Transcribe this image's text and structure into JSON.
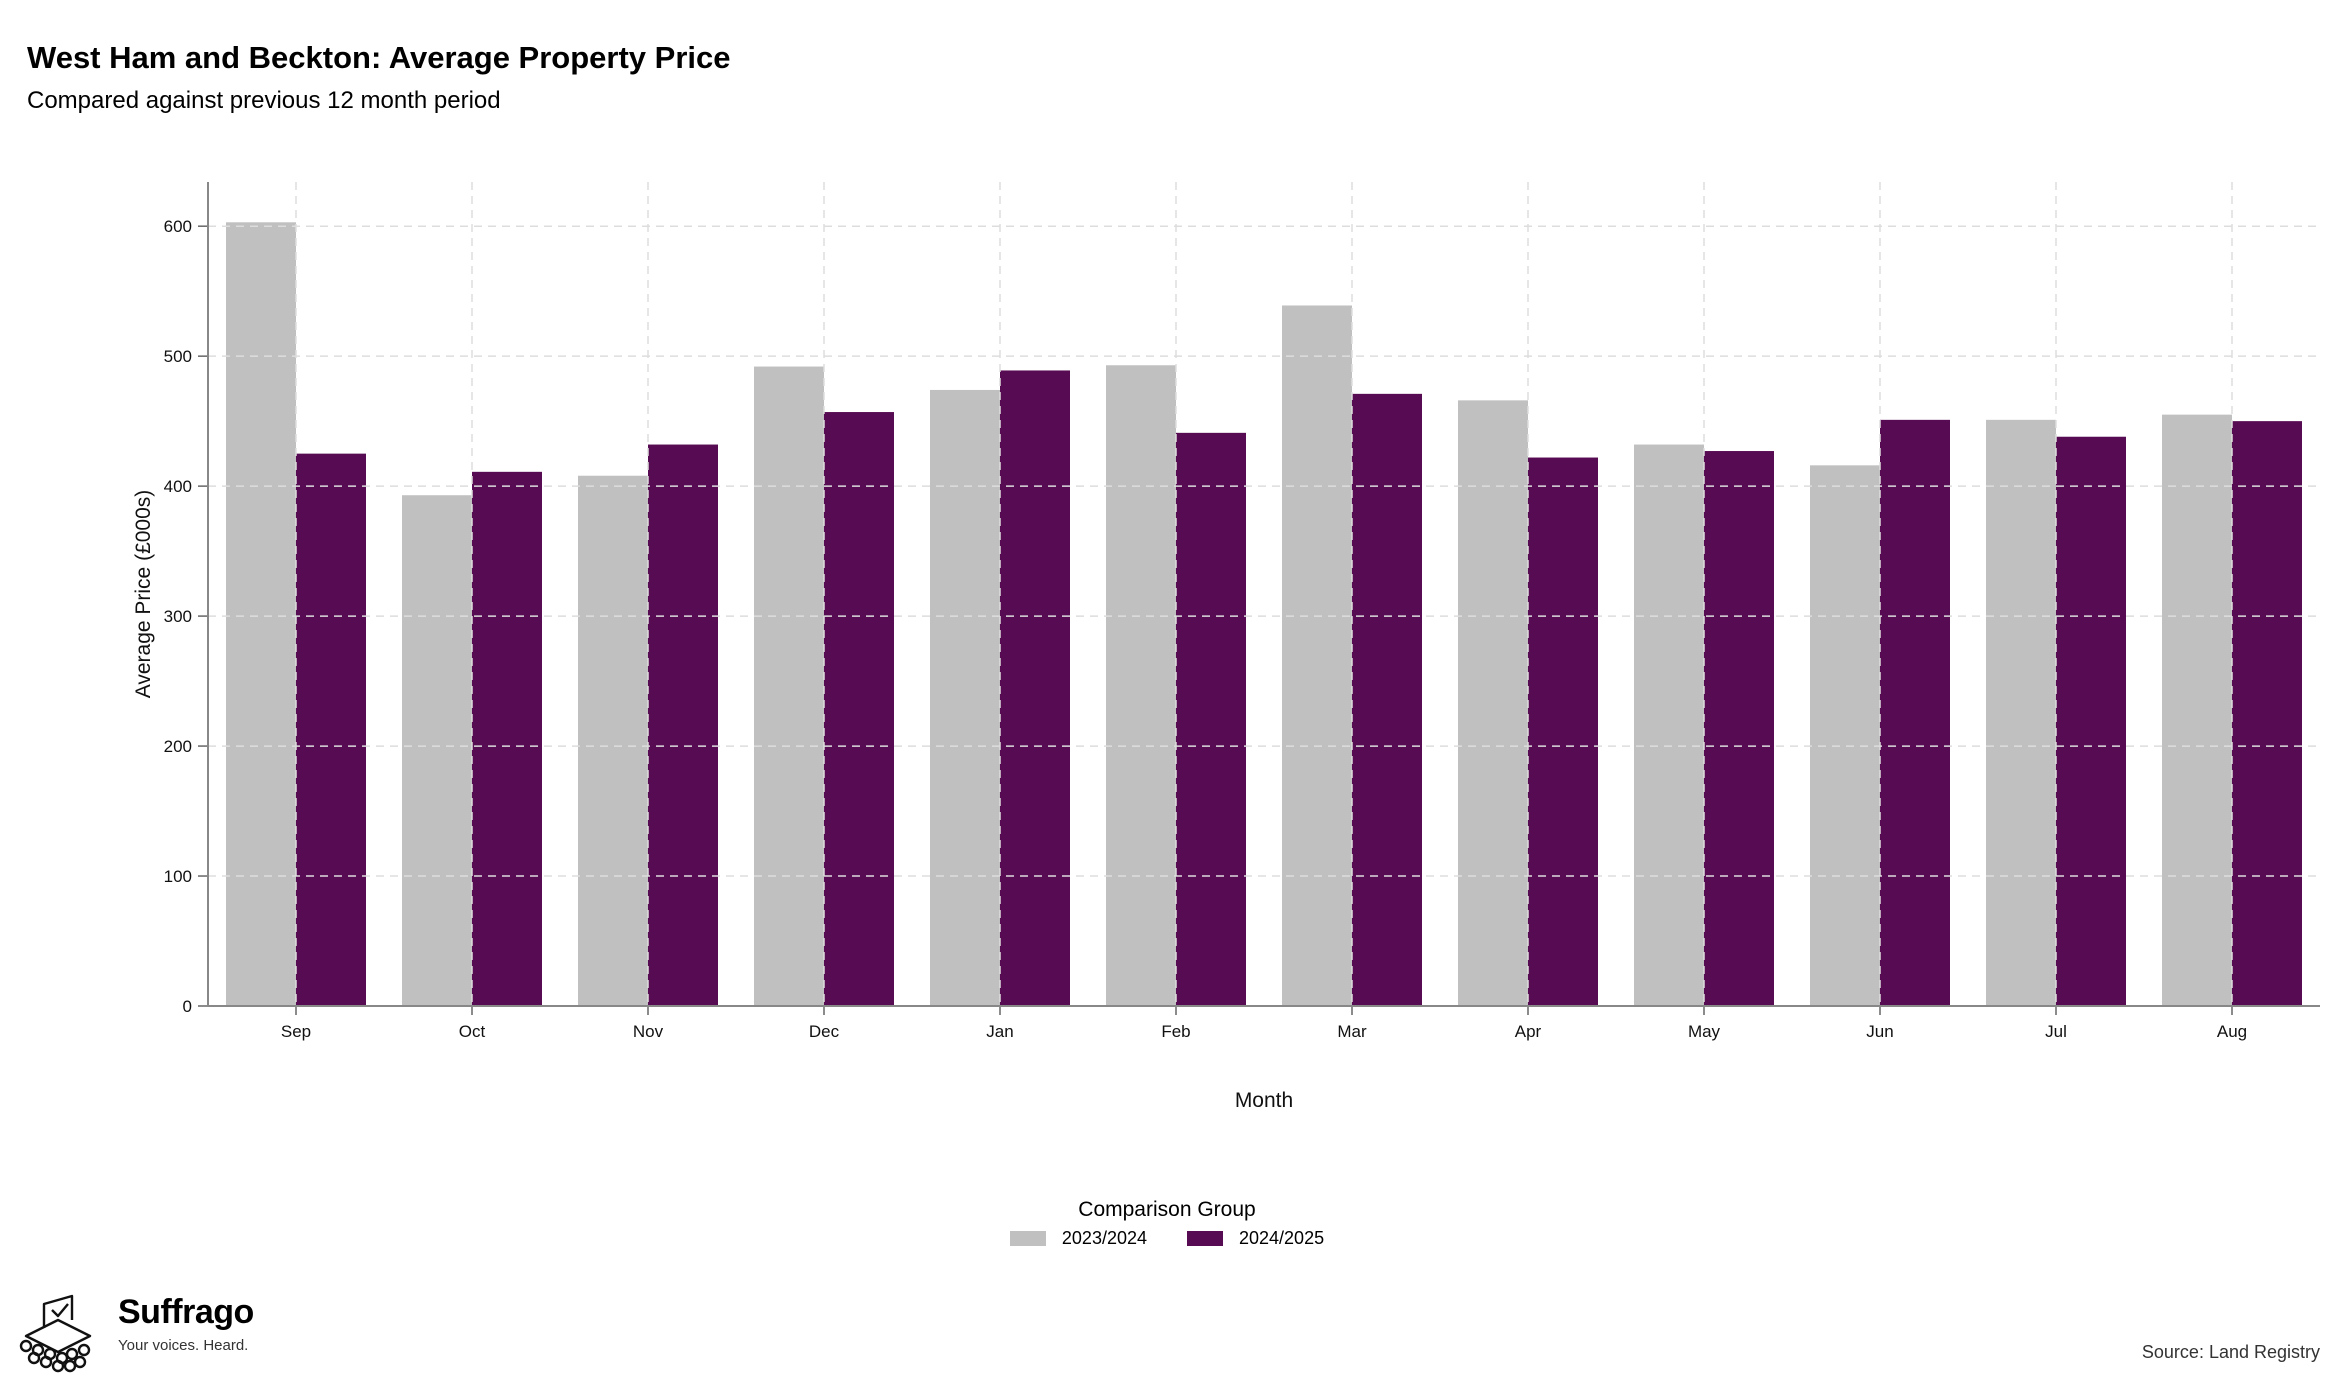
{
  "header": {
    "title": "West Ham and Beckton: Average Property Price",
    "subtitle": "Compared against previous 12 month period"
  },
  "chart_data": {
    "type": "bar",
    "categories": [
      "Sep",
      "Oct",
      "Nov",
      "Dec",
      "Jan",
      "Feb",
      "Mar",
      "Apr",
      "May",
      "Jun",
      "Jul",
      "Aug"
    ],
    "series": [
      {
        "name": "2023/2024",
        "color": "#c0c0c0",
        "values": [
          603,
          393,
          408,
          492,
          474,
          493,
          539,
          466,
          432,
          416,
          451,
          455
        ]
      },
      {
        "name": "2024/2025",
        "color": "#570b52",
        "values": [
          425,
          411,
          432,
          457,
          489,
          441,
          471,
          422,
          427,
          451,
          438,
          450
        ]
      }
    ],
    "xlabel": "Month",
    "ylabel": "Average Price (£000s)",
    "ylim": [
      0,
      634
    ],
    "yticks": [
      0,
      100,
      200,
      300,
      400,
      500,
      600
    ],
    "grid": true,
    "legend_title": "Comparison Group",
    "legend_position": "bottom"
  },
  "footer": {
    "logo_icon": "ballot-box-icon",
    "brand": "Suffrago",
    "tagline": "Your voices. Heard.",
    "source": "Source: Land Registry"
  }
}
